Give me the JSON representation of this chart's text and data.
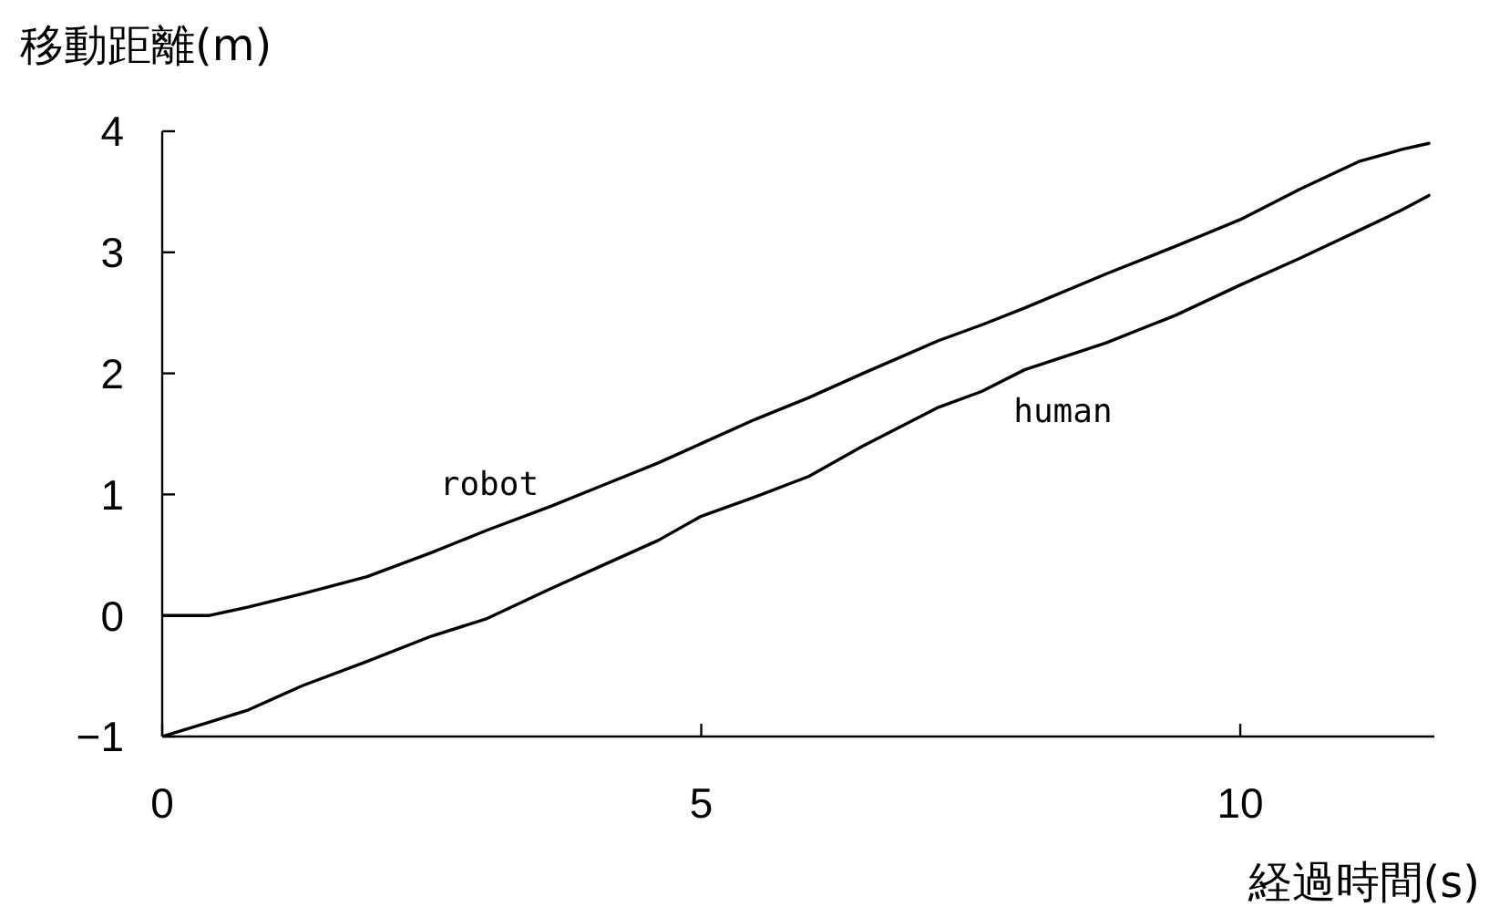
{
  "chart_data": {
    "type": "line",
    "xlabel": "経過時間(s)",
    "ylabel": "移動距離(m)",
    "xlim": [
      0,
      11.8
    ],
    "xticks": [
      0,
      5,
      10
    ],
    "ylim": [
      -1,
      4
    ],
    "yticks": [
      {
        "value": -1,
        "label": "−1"
      },
      0,
      1,
      2,
      3,
      4
    ],
    "series": [
      {
        "name": "robot",
        "color": "#000000",
        "x": [
          0,
          0.44,
          0.8,
          1.3,
          1.9,
          2.5,
          3.0,
          3.6,
          4.1,
          4.6,
          5.0,
          5.5,
          6.0,
          6.5,
          7.2,
          7.6,
          8.0,
          8.75,
          9.4,
          10,
          10.55,
          11.1,
          11.5,
          11.75
        ],
        "values": [
          0,
          0,
          0.07,
          0.18,
          0.32,
          0.52,
          0.7,
          0.9,
          1.08,
          1.26,
          1.42,
          1.62,
          1.8,
          2.0,
          2.27,
          2.4,
          2.54,
          2.82,
          3.05,
          3.27,
          3.52,
          3.75,
          3.85,
          3.9
        ]
      },
      {
        "name": "human",
        "color": "#000000",
        "x": [
          0,
          0.44,
          0.8,
          1.3,
          1.9,
          2.5,
          3.0,
          3.6,
          4.1,
          4.6,
          5.0,
          5.5,
          6.0,
          6.5,
          7.2,
          7.6,
          8.0,
          8.75,
          9.4,
          10,
          10.55,
          11.1,
          11.5,
          11.75
        ],
        "values": [
          -1,
          -0.88,
          -0.78,
          -0.58,
          -0.38,
          -0.17,
          -0.03,
          0.22,
          0.42,
          0.62,
          0.82,
          0.98,
          1.15,
          1.4,
          1.72,
          1.85,
          2.03,
          2.25,
          2.48,
          2.73,
          2.95,
          3.18,
          3.35,
          3.47
        ]
      }
    ]
  }
}
